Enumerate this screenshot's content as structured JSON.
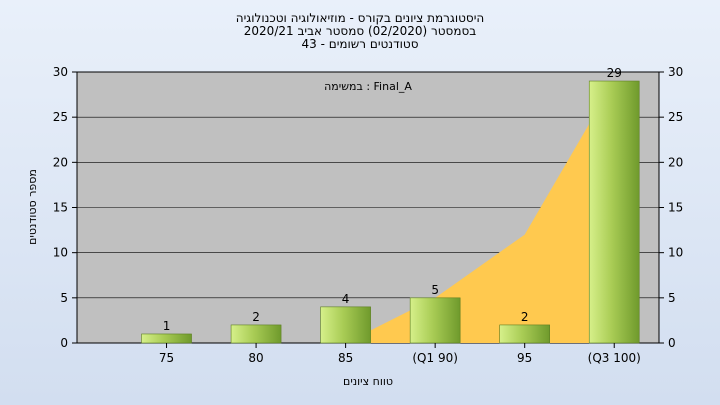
{
  "chart_data": {
    "type": "bar",
    "title_lines": [
      "היסטוגרמת ציונים בקורס - מוזיאולוגיה וטכנולוגיה",
      "בסמסטר  (02/2020)  סמסטר אביב 2020/21",
      "סטודנטים רשומים - 43"
    ],
    "annotation": "במשימה : Final_A",
    "xlabel": "טווח ציונים",
    "ylabel": "מספר סטודנטים",
    "categories": [
      "75",
      "80",
      "85",
      "(Q1 90)",
      "95",
      "(Q3 100)"
    ],
    "values": [
      1,
      2,
      4,
      5,
      2,
      29
    ],
    "data_labels": [
      "1",
      "2",
      "4",
      "5",
      "2",
      "29"
    ],
    "cumulative_area": [
      0,
      0,
      0,
      5,
      12,
      29
    ],
    "ylim": [
      0,
      30
    ],
    "yticks": [
      0,
      5,
      10,
      15,
      20,
      25,
      30
    ],
    "grid": true,
    "colors": {
      "plot_bg": "#c0c0c0",
      "bar_light": "#d6f08a",
      "bar_dark": "#6f9a2c",
      "area": "#ffc94f",
      "grid": "#000000"
    }
  }
}
